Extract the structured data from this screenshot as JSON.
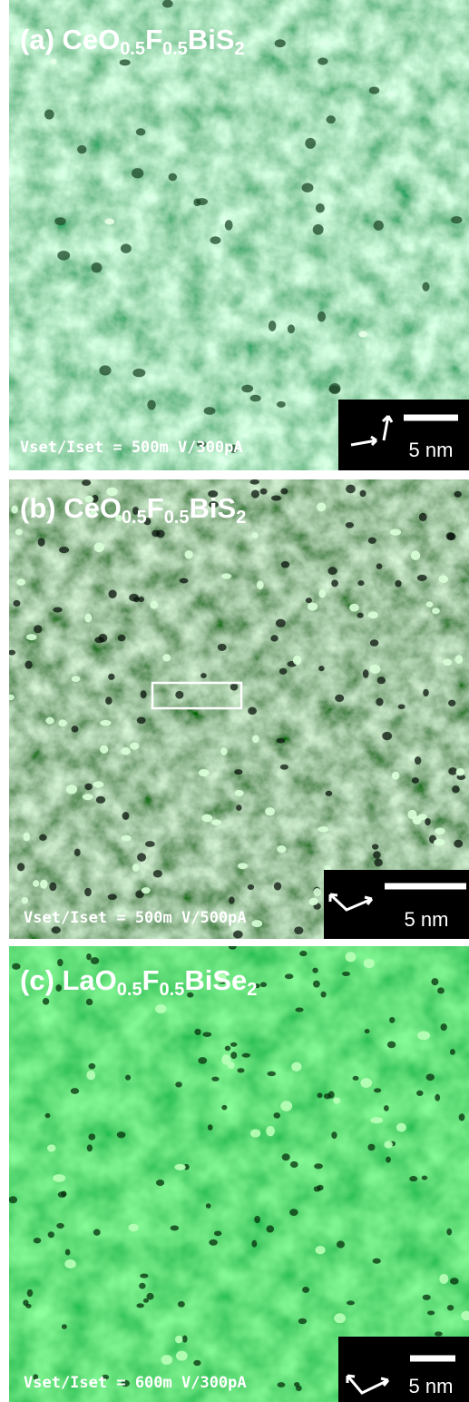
{
  "panels": [
    {
      "title_parts": [
        "(a) CeO",
        "0.5",
        "F",
        "0.5",
        "BiS",
        "2"
      ],
      "setpoint": "Vset/Iset = 500m V/300pA",
      "scale_bar": "5 nm"
    },
    {
      "title_parts": [
        "(b) CeO",
        "0.5",
        "F",
        "0.5",
        "BiS",
        "2"
      ],
      "setpoint": "Vset/Iset = 500m V/500pA",
      "scale_bar": "5 nm"
    },
    {
      "title_parts": [
        "(c) LaO",
        "0.5",
        "F",
        "0.5",
        "BiSe",
        "2"
      ],
      "setpoint": "Vset/Iset = 600m V/300pA",
      "scale_bar": "5 nm"
    }
  ]
}
